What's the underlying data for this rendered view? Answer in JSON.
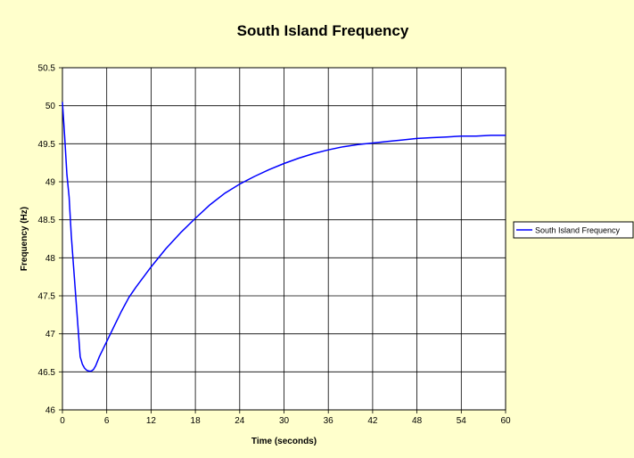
{
  "chart_data": {
    "type": "line",
    "title": "South Island Frequency",
    "xlabel": "Time (seconds)",
    "ylabel": "Frequency (Hz)",
    "xlim": [
      0,
      60
    ],
    "ylim": [
      46,
      50.5
    ],
    "x_ticks": [
      0,
      6,
      12,
      18,
      24,
      30,
      36,
      42,
      48,
      54,
      60
    ],
    "y_ticks": [
      46,
      46.5,
      47,
      47.5,
      48,
      48.5,
      49,
      49.5,
      50,
      50.5
    ],
    "grid": true,
    "legend_position": "right",
    "series": [
      {
        "name": "South Island Frequency",
        "color": "#0000FF",
        "x": [
          0,
          0.3,
          0.6,
          0.9,
          1.2,
          1.5,
          1.8,
          2.1,
          2.4,
          2.7,
          3.0,
          3.3,
          3.6,
          3.9,
          4.2,
          4.5,
          5,
          6,
          7,
          8,
          9,
          10,
          12,
          14,
          16,
          18,
          20,
          22,
          24,
          26,
          28,
          30,
          32,
          34,
          36,
          38,
          40,
          42,
          44,
          46,
          48,
          50,
          52,
          54,
          56,
          58,
          60
        ],
        "y": [
          50.05,
          49.6,
          49.1,
          48.8,
          48.3,
          47.9,
          47.5,
          47.1,
          46.7,
          46.6,
          46.55,
          46.52,
          46.51,
          46.51,
          46.53,
          46.58,
          46.7,
          46.9,
          47.1,
          47.3,
          47.48,
          47.62,
          47.88,
          48.12,
          48.33,
          48.52,
          48.7,
          48.85,
          48.97,
          49.07,
          49.16,
          49.24,
          49.31,
          49.37,
          49.42,
          49.46,
          49.49,
          49.51,
          49.53,
          49.55,
          49.57,
          49.58,
          49.59,
          49.6,
          49.6,
          49.61,
          49.61
        ]
      }
    ]
  }
}
